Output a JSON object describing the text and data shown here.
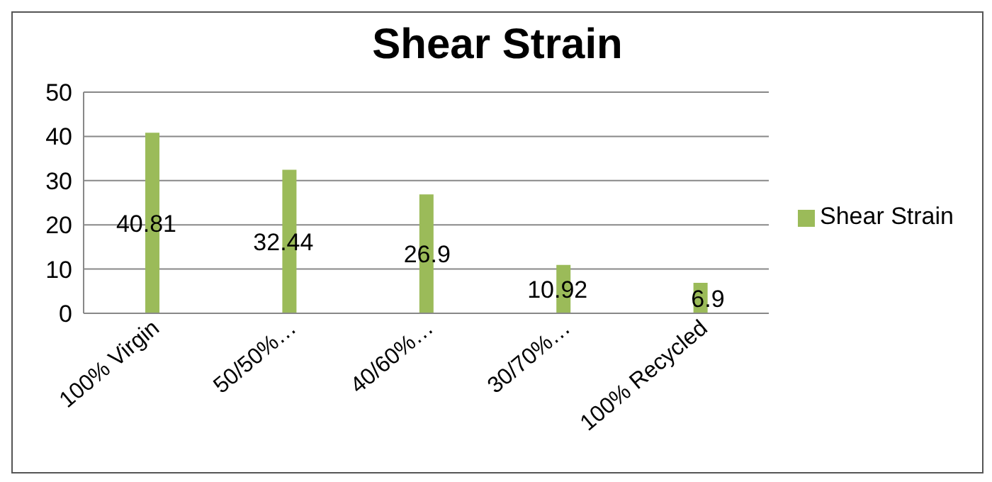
{
  "chart_data": {
    "type": "bar",
    "title": "Shear Strain",
    "categories": [
      "100% Virgin",
      "50/50%…",
      "40/60%…",
      "30/70%…",
      "100% Recycled"
    ],
    "series": [
      {
        "name": "Shear Strain",
        "color": "#9bbb59",
        "values": [
          40.81,
          32.44,
          26.9,
          10.92,
          6.9
        ]
      }
    ],
    "ylim": [
      0,
      50
    ],
    "yticks": [
      0,
      10,
      20,
      30,
      40,
      50
    ],
    "grid": "y",
    "legend": "right",
    "data_labels": true
  }
}
